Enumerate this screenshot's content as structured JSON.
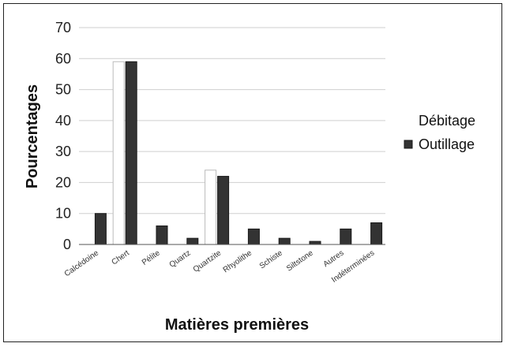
{
  "chart_data": {
    "type": "bar",
    "title": "",
    "xlabel": "Matières premières",
    "ylabel": "Pourcentages",
    "ylim": [
      0,
      70
    ],
    "yticks": [
      0,
      10,
      20,
      30,
      40,
      50,
      60,
      70
    ],
    "grid": true,
    "legend_position": "right",
    "categories": [
      "Calcédoine",
      "Chert",
      "Pélite",
      "Quartz",
      "Quartzite",
      "Rhyolithe",
      "Schiste",
      "Siltstone",
      "Autres",
      "Indéterminées"
    ],
    "series": [
      {
        "name": "Débitage",
        "color": "#ffffff",
        "values": [
          0,
          59,
          0,
          0,
          24,
          0,
          0,
          0,
          0,
          0
        ]
      },
      {
        "name": "Outillage",
        "color": "#333333",
        "values": [
          10,
          59,
          6,
          2,
          22,
          5,
          2,
          1,
          5,
          7
        ]
      }
    ]
  }
}
